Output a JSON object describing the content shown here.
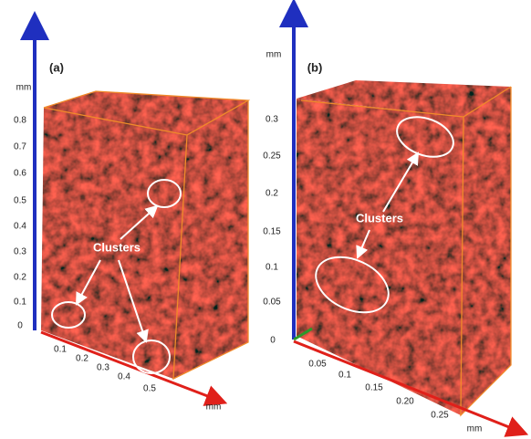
{
  "panels": [
    {
      "label": "(a)",
      "annotation": "Clusters",
      "y_axis": {
        "unit": "mm",
        "ticks": [
          "0",
          "0.1",
          "0.2",
          "0.3",
          "0.4",
          "0.5",
          "0.6",
          "0.7",
          "0.8"
        ]
      },
      "x_axis": {
        "unit": "mm",
        "ticks": [
          "0.1",
          "0.2",
          "0.3",
          "0.4",
          "0.5"
        ]
      }
    },
    {
      "label": "(b)",
      "annotation": "Clusters",
      "y_axis": {
        "unit": "mm",
        "ticks": [
          "0",
          "0.05",
          "0.1",
          "0.15",
          "0.2",
          "0.25",
          "0.3"
        ]
      },
      "x_axis": {
        "unit": "mm",
        "ticks": [
          "0.05",
          "0.1",
          "0.15",
          "0.20",
          "0.25"
        ]
      }
    }
  ]
}
